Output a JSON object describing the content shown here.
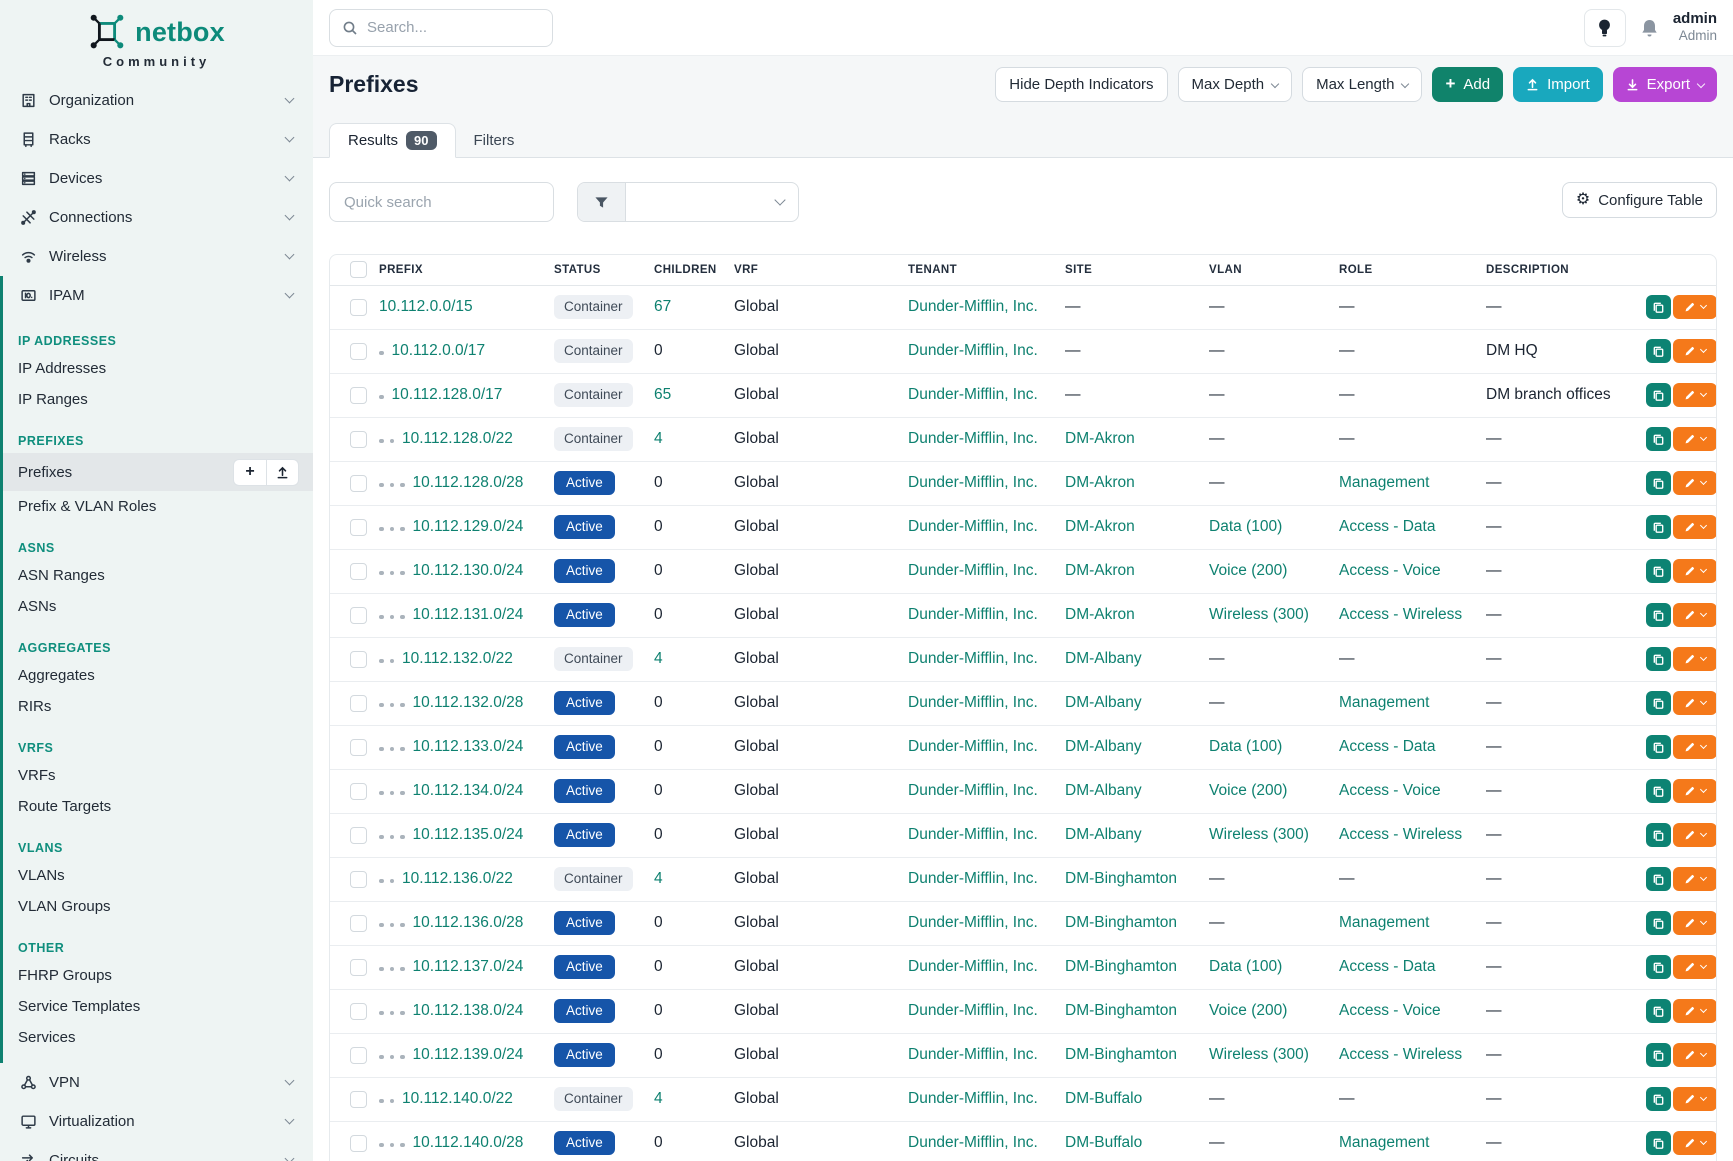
{
  "sidebar": {
    "logo": {
      "brand": "netbox",
      "subtitle": "Community",
      "icon": "netbox-logo-icon"
    },
    "top_items": [
      {
        "label": "Organization",
        "icon": "organization-icon"
      },
      {
        "label": "Racks",
        "icon": "racks-icon"
      },
      {
        "label": "Devices",
        "icon": "devices-icon"
      },
      {
        "label": "Connections",
        "icon": "connections-icon"
      },
      {
        "label": "Wireless",
        "icon": "wireless-icon"
      }
    ],
    "ipam": {
      "label": "IPAM",
      "icon": "ipam-icon",
      "sections": [
        {
          "heading": "IP ADDRESSES",
          "items": [
            {
              "label": "IP Addresses"
            },
            {
              "label": "IP Ranges"
            }
          ]
        },
        {
          "heading": "PREFIXES",
          "items": [
            {
              "label": "Prefixes",
              "active": true,
              "actions": [
                "plus-icon",
                "import-icon"
              ]
            },
            {
              "label": "Prefix & VLAN Roles"
            }
          ]
        },
        {
          "heading": "ASNS",
          "items": [
            {
              "label": "ASN Ranges"
            },
            {
              "label": "ASNs"
            }
          ]
        },
        {
          "heading": "AGGREGATES",
          "items": [
            {
              "label": "Aggregates"
            },
            {
              "label": "RIRs"
            }
          ]
        },
        {
          "heading": "VRFS",
          "items": [
            {
              "label": "VRFs"
            },
            {
              "label": "Route Targets"
            }
          ]
        },
        {
          "heading": "VLANS",
          "items": [
            {
              "label": "VLANs"
            },
            {
              "label": "VLAN Groups"
            }
          ]
        },
        {
          "heading": "OTHER",
          "items": [
            {
              "label": "FHRP Groups"
            },
            {
              "label": "Service Templates"
            },
            {
              "label": "Services"
            }
          ]
        }
      ]
    },
    "bottom_items": [
      {
        "label": "VPN",
        "icon": "vpn-icon"
      },
      {
        "label": "Virtualization",
        "icon": "virtualization-icon"
      },
      {
        "label": "Circuits",
        "icon": "circuits-icon"
      }
    ]
  },
  "topbar": {
    "search_placeholder": "Search...",
    "icons": [
      "search-icon",
      "lightbulb-icon",
      "bell-icon"
    ],
    "user": {
      "name": "admin",
      "role": "Admin"
    }
  },
  "page": {
    "title": "Prefixes",
    "buttons": {
      "hide_depth": "Hide Depth Indicators",
      "max_depth": "Max Depth",
      "max_length": "Max Length",
      "add": "Add",
      "import": "Import",
      "export": "Export"
    },
    "tabs": [
      {
        "label": "Results",
        "badge": "90",
        "active": true
      },
      {
        "label": "Filters",
        "active": false
      }
    ],
    "quick_search_placeholder": "Quick search",
    "configure_table": "Configure Table"
  },
  "colors": {
    "accent": "#0e8170",
    "add": "#10836b",
    "import": "#19a8be",
    "export": "#b746d4",
    "active-badge": "#1655a9",
    "edit-orange": "#f5791a",
    "copy-teal": "#0d8373"
  },
  "table": {
    "columns": [
      "PREFIX",
      "STATUS",
      "CHILDREN",
      "VRF",
      "TENANT",
      "SITE",
      "VLAN",
      "ROLE",
      "DESCRIPTION"
    ],
    "rows": [
      {
        "prefix": "10.112.0.0/15",
        "depth": 0,
        "status": "Container",
        "children": "67",
        "vrf": "Global",
        "tenant": "Dunder-Mifflin, Inc.",
        "site": "—",
        "vlan": "—",
        "role": "—",
        "description": "—"
      },
      {
        "prefix": "10.112.0.0/17",
        "depth": 1,
        "status": "Container",
        "children": "0",
        "vrf": "Global",
        "tenant": "Dunder-Mifflin, Inc.",
        "site": "—",
        "vlan": "—",
        "role": "—",
        "description": "DM HQ"
      },
      {
        "prefix": "10.112.128.0/17",
        "depth": 1,
        "status": "Container",
        "children": "65",
        "vrf": "Global",
        "tenant": "Dunder-Mifflin, Inc.",
        "site": "—",
        "vlan": "—",
        "role": "—",
        "description": "DM branch offices"
      },
      {
        "prefix": "10.112.128.0/22",
        "depth": 2,
        "status": "Container",
        "children": "4",
        "vrf": "Global",
        "tenant": "Dunder-Mifflin, Inc.",
        "site": "DM-Akron",
        "vlan": "—",
        "role": "—",
        "description": "—"
      },
      {
        "prefix": "10.112.128.0/28",
        "depth": 3,
        "status": "Active",
        "children": "0",
        "vrf": "Global",
        "tenant": "Dunder-Mifflin, Inc.",
        "site": "DM-Akron",
        "vlan": "—",
        "role": "Management",
        "description": "—"
      },
      {
        "prefix": "10.112.129.0/24",
        "depth": 3,
        "status": "Active",
        "children": "0",
        "vrf": "Global",
        "tenant": "Dunder-Mifflin, Inc.",
        "site": "DM-Akron",
        "vlan": "Data (100)",
        "role": "Access - Data",
        "description": "—"
      },
      {
        "prefix": "10.112.130.0/24",
        "depth": 3,
        "status": "Active",
        "children": "0",
        "vrf": "Global",
        "tenant": "Dunder-Mifflin, Inc.",
        "site": "DM-Akron",
        "vlan": "Voice (200)",
        "role": "Access - Voice",
        "description": "—"
      },
      {
        "prefix": "10.112.131.0/24",
        "depth": 3,
        "status": "Active",
        "children": "0",
        "vrf": "Global",
        "tenant": "Dunder-Mifflin, Inc.",
        "site": "DM-Akron",
        "vlan": "Wireless (300)",
        "role": "Access - Wireless",
        "description": "—"
      },
      {
        "prefix": "10.112.132.0/22",
        "depth": 2,
        "status": "Container",
        "children": "4",
        "vrf": "Global",
        "tenant": "Dunder-Mifflin, Inc.",
        "site": "DM-Albany",
        "vlan": "—",
        "role": "—",
        "description": "—"
      },
      {
        "prefix": "10.112.132.0/28",
        "depth": 3,
        "status": "Active",
        "children": "0",
        "vrf": "Global",
        "tenant": "Dunder-Mifflin, Inc.",
        "site": "DM-Albany",
        "vlan": "—",
        "role": "Management",
        "description": "—"
      },
      {
        "prefix": "10.112.133.0/24",
        "depth": 3,
        "status": "Active",
        "children": "0",
        "vrf": "Global",
        "tenant": "Dunder-Mifflin, Inc.",
        "site": "DM-Albany",
        "vlan": "Data (100)",
        "role": "Access - Data",
        "description": "—"
      },
      {
        "prefix": "10.112.134.0/24",
        "depth": 3,
        "status": "Active",
        "children": "0",
        "vrf": "Global",
        "tenant": "Dunder-Mifflin, Inc.",
        "site": "DM-Albany",
        "vlan": "Voice (200)",
        "role": "Access - Voice",
        "description": "—"
      },
      {
        "prefix": "10.112.135.0/24",
        "depth": 3,
        "status": "Active",
        "children": "0",
        "vrf": "Global",
        "tenant": "Dunder-Mifflin, Inc.",
        "site": "DM-Albany",
        "vlan": "Wireless (300)",
        "role": "Access - Wireless",
        "description": "—"
      },
      {
        "prefix": "10.112.136.0/22",
        "depth": 2,
        "status": "Container",
        "children": "4",
        "vrf": "Global",
        "tenant": "Dunder-Mifflin, Inc.",
        "site": "DM-Binghamton",
        "vlan": "—",
        "role": "—",
        "description": "—"
      },
      {
        "prefix": "10.112.136.0/28",
        "depth": 3,
        "status": "Active",
        "children": "0",
        "vrf": "Global",
        "tenant": "Dunder-Mifflin, Inc.",
        "site": "DM-Binghamton",
        "vlan": "—",
        "role": "Management",
        "description": "—"
      },
      {
        "prefix": "10.112.137.0/24",
        "depth": 3,
        "status": "Active",
        "children": "0",
        "vrf": "Global",
        "tenant": "Dunder-Mifflin, Inc.",
        "site": "DM-Binghamton",
        "vlan": "Data (100)",
        "role": "Access - Data",
        "description": "—"
      },
      {
        "prefix": "10.112.138.0/24",
        "depth": 3,
        "status": "Active",
        "children": "0",
        "vrf": "Global",
        "tenant": "Dunder-Mifflin, Inc.",
        "site": "DM-Binghamton",
        "vlan": "Voice (200)",
        "role": "Access - Voice",
        "description": "—"
      },
      {
        "prefix": "10.112.139.0/24",
        "depth": 3,
        "status": "Active",
        "children": "0",
        "vrf": "Global",
        "tenant": "Dunder-Mifflin, Inc.",
        "site": "DM-Binghamton",
        "vlan": "Wireless (300)",
        "role": "Access - Wireless",
        "description": "—"
      },
      {
        "prefix": "10.112.140.0/22",
        "depth": 2,
        "status": "Container",
        "children": "4",
        "vrf": "Global",
        "tenant": "Dunder-Mifflin, Inc.",
        "site": "DM-Buffalo",
        "vlan": "—",
        "role": "—",
        "description": "—"
      },
      {
        "prefix": "10.112.140.0/28",
        "depth": 3,
        "status": "Active",
        "children": "0",
        "vrf": "Global",
        "tenant": "Dunder-Mifflin, Inc.",
        "site": "DM-Buffalo",
        "vlan": "—",
        "role": "Management",
        "description": "—"
      }
    ]
  }
}
